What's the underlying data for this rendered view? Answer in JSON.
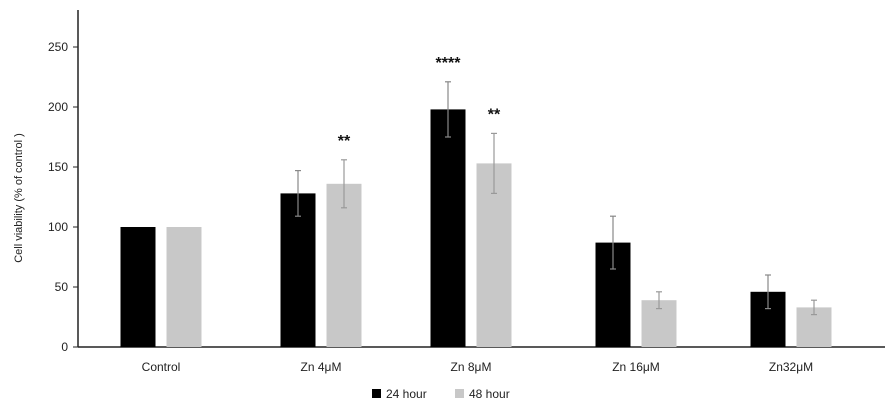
{
  "chart_data": {
    "type": "bar",
    "title": "",
    "xlabel": "",
    "ylabel": "Cell viability (% of control )",
    "ylim": [
      0,
      250
    ],
    "yticks": [
      0,
      50,
      100,
      150,
      200,
      250
    ],
    "categories": [
      "Control",
      "Zn 4μM",
      "Zn 8μM",
      "Zn 16μM",
      "Zn32μM"
    ],
    "series": [
      {
        "name": "24 hour",
        "color": "#000000",
        "values": [
          100,
          128,
          198,
          87,
          46
        ],
        "errors": [
          0,
          19,
          23,
          22,
          14
        ],
        "significance": [
          "",
          "",
          "****",
          "",
          ""
        ]
      },
      {
        "name": "48 hour",
        "color": "#c8c8c8",
        "values": [
          100,
          136,
          153,
          39,
          33
        ],
        "errors": [
          0,
          20,
          25,
          7,
          6
        ],
        "significance": [
          "",
          "**",
          "**",
          "",
          ""
        ]
      }
    ],
    "legend_position": "bottom-center",
    "grid": false
  }
}
